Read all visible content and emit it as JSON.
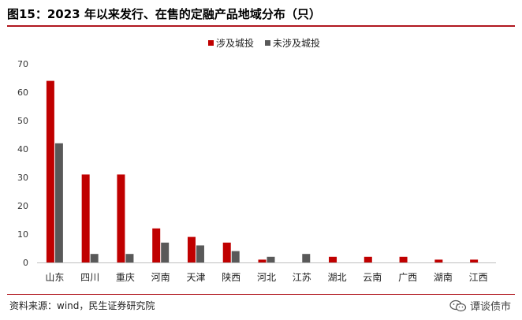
{
  "title": "图15：2023 年以来发行、在售的定融产品地域分布（只）",
  "source": "资料来源：wind，民生证券研究院",
  "watermark": "谭谈债市",
  "colors": {
    "series1": "#c00000",
    "series2": "#595959",
    "rule": "#b0171f",
    "axis": "#bfbfbf"
  },
  "chart_data": {
    "type": "bar",
    "categories": [
      "山东",
      "四川",
      "重庆",
      "河南",
      "天津",
      "陕西",
      "河北",
      "江苏",
      "湖北",
      "云南",
      "广西",
      "湖南",
      "江西"
    ],
    "series": [
      {
        "name": "涉及城投",
        "values": [
          64,
          31,
          31,
          12,
          9,
          7,
          1,
          0,
          2,
          2,
          2,
          1,
          1
        ]
      },
      {
        "name": "未涉及城投",
        "values": [
          42,
          3,
          3,
          7,
          6,
          4,
          2,
          3,
          0,
          0,
          0,
          0,
          0
        ]
      }
    ],
    "ylim": [
      0,
      70
    ],
    "yticks": [
      0,
      10,
      20,
      30,
      40,
      50,
      60,
      70
    ],
    "xlabel": "",
    "ylabel": "",
    "legend": "top-center",
    "grid": false
  }
}
